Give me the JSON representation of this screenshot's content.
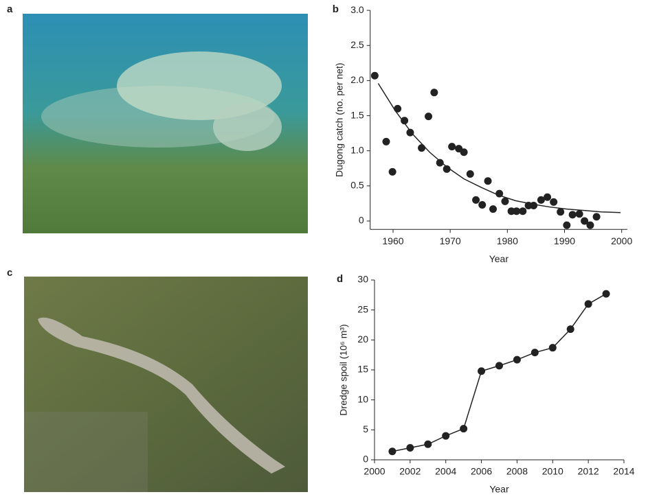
{
  "images": [
    {
      "panel": "a"
    },
    {
      "panel": "c"
    }
  ],
  "chart_data": [
    {
      "type": "scatter",
      "panel": "b",
      "x_label": "Year",
      "y_label": "Dugong catch (no. per net)",
      "x": [
        1956.8,
        1958.8,
        1959.9,
        1960.8,
        1962.0,
        1963.0,
        1965.0,
        1966.2,
        1967.2,
        1968.2,
        1969.4,
        1970.3,
        1971.5,
        1972.4,
        1973.5,
        1974.5,
        1975.6,
        1976.6,
        1977.5,
        1978.6,
        1979.6,
        1980.7,
        1981.6,
        1982.7,
        1983.7,
        1984.6,
        1985.9,
        1987.0,
        1988.1,
        1989.3,
        1990.4,
        1991.4,
        1992.6,
        1993.5,
        1994.5,
        1995.6
      ],
      "values": [
        2.07,
        1.13,
        0.7,
        1.6,
        1.43,
        1.26,
        1.04,
        1.49,
        1.83,
        0.83,
        0.74,
        1.06,
        1.03,
        0.98,
        0.67,
        0.3,
        0.23,
        0.57,
        0.17,
        0.39,
        0.28,
        0.14,
        0.14,
        0.14,
        0.22,
        0.22,
        0.3,
        0.34,
        0.27,
        0.13,
        -0.06,
        0.09,
        0.1,
        0.0,
        -0.06,
        0.06
      ],
      "fit": {
        "x": [
          1957.4,
          1960.4,
          1963.4,
          1966.4,
          1969.4,
          1972.4,
          1975.4,
          1978.4,
          1981.4,
          1984.4,
          1987.4,
          1990.4,
          1993.4,
          1996.4,
          1999.8
        ],
        "values": [
          1.96,
          1.57,
          1.24,
          0.98,
          0.77,
          0.6,
          0.48,
          0.37,
          0.29,
          0.24,
          0.2,
          0.17,
          0.15,
          0.13,
          0.12
        ]
      },
      "color": "#222222",
      "xlim": [
        1956,
        2001
      ],
      "xticks": [
        1960,
        1970,
        1980,
        1990,
        2000
      ],
      "ylim": [
        -0.12,
        3.0
      ],
      "yticks": [
        0,
        0.5,
        {
          "value": 1,
          "label": "1.0"
        },
        1.5,
        {
          "value": 2,
          "label": "2.0"
        },
        2.5,
        {
          "value": 3,
          "label": "3.0"
        }
      ]
    },
    {
      "type": "line",
      "panel": "d",
      "x_label": "Year",
      "y_label": "Dredge spoil (10⁶ m³)",
      "x": [
        2001,
        2002,
        2003,
        2004,
        2005,
        2006,
        2007,
        2008,
        2009,
        2010,
        2011,
        2012,
        2013
      ],
      "values": [
        1.4,
        2.0,
        2.6,
        4.0,
        5.2,
        14.8,
        15.7,
        16.7,
        17.9,
        18.7,
        21.8,
        26.0,
        27.7
      ],
      "color": "#222222",
      "xlim": [
        2000,
        2014
      ],
      "xticks": [
        2000,
        2002,
        2004,
        2006,
        2008,
        2010,
        2012,
        2014
      ],
      "ylim": [
        0,
        30
      ],
      "yticks": [
        0,
        5,
        10,
        15,
        20,
        25,
        30
      ]
    }
  ]
}
